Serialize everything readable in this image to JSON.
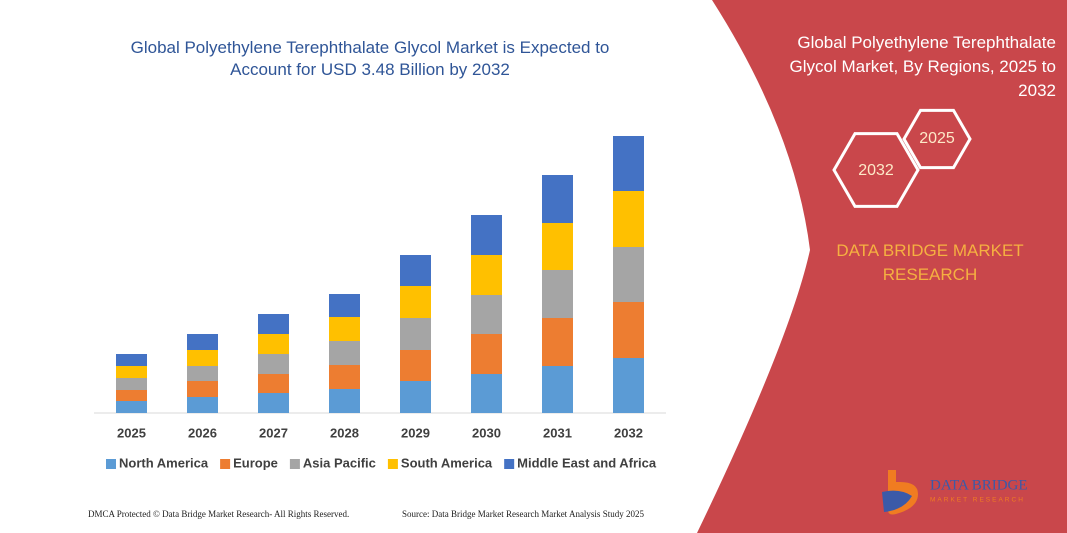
{
  "chart_data": {
    "type": "stacked_bar",
    "title": "Global Polyethylene Terephthalate Glycol Market is Expected to Account for USD 3.48 Billion by 2032",
    "categories": [
      "2025",
      "2026",
      "2027",
      "2028",
      "2029",
      "2030",
      "2031",
      "2032"
    ],
    "series": [
      {
        "name": "North America",
        "color": "#5b9bd5",
        "values": [
          12,
          16,
          20,
          24,
          32,
          39,
          47,
          55
        ]
      },
      {
        "name": "Europe",
        "color": "#ed7d31",
        "values": [
          11,
          16,
          19,
          24,
          31,
          40,
          48,
          56
        ]
      },
      {
        "name": "Asia Pacific",
        "color": "#a5a5a5",
        "values": [
          12,
          15,
          20,
          24,
          32,
          39,
          48,
          55
        ]
      },
      {
        "name": "South America",
        "color": "#ffc000",
        "values": [
          12,
          16,
          20,
          24,
          32,
          40,
          47,
          56
        ]
      },
      {
        "name": "Middle East and Africa",
        "color": "#4472c4",
        "values": [
          12,
          16,
          20,
          23,
          31,
          40,
          48,
          55
        ]
      }
    ],
    "legend": "bottom"
  },
  "panel": {
    "title": "Global Polyethylene Terephthalate Glycol Market, By Regions, 2025 to 2032",
    "year_start": "2025",
    "year_end": "2032",
    "brand": "DATA BRIDGE MARKET RESEARCH"
  },
  "logo": {
    "name": "DATA BRIDGE",
    "tagline": "MARKET RESEARCH"
  },
  "footer": {
    "left": "DMCA Protected © Data Bridge Market Research-  All Rights Reserved.",
    "right": "Source: Data Bridge Market Research  Market Analysis Study 2025"
  }
}
